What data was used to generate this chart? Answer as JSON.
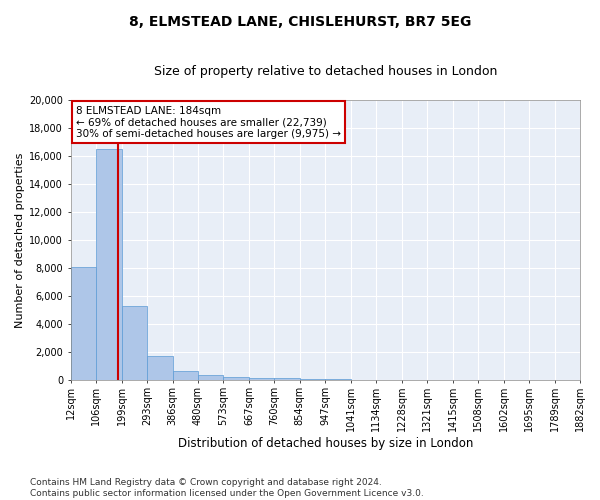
{
  "title": "8, ELMSTEAD LANE, CHISLEHURST, BR7 5EG",
  "subtitle": "Size of property relative to detached houses in London",
  "xlabel": "Distribution of detached houses by size in London",
  "ylabel": "Number of detached properties",
  "bar_values": [
    8100,
    16500,
    5300,
    1750,
    650,
    350,
    270,
    200,
    200,
    120,
    80,
    50,
    30,
    20,
    15,
    10,
    8,
    5,
    4,
    3
  ],
  "bin_labels": [
    "12sqm",
    "106sqm",
    "199sqm",
    "293sqm",
    "386sqm",
    "480sqm",
    "573sqm",
    "667sqm",
    "760sqm",
    "854sqm",
    "947sqm",
    "1041sqm",
    "1134sqm",
    "1228sqm",
    "1321sqm",
    "1415sqm",
    "1508sqm",
    "1602sqm",
    "1695sqm",
    "1789sqm",
    "1882sqm"
  ],
  "bar_color": "#aec6e8",
  "bar_edge_color": "#5b9bd5",
  "vline_color": "#cc0000",
  "property_sqm": 184,
  "bin_starts": [
    12,
    106,
    199,
    293,
    386,
    480,
    573,
    667,
    760,
    854,
    947,
    1041,
    1134,
    1228,
    1321,
    1415,
    1508,
    1602,
    1695,
    1789,
    1882
  ],
  "annotation_line1": "8 ELMSTEAD LANE: 184sqm",
  "annotation_line2": "← 69% of detached houses are smaller (22,739)",
  "annotation_line3": "30% of semi-detached houses are larger (9,975) →",
  "annotation_box_color": "#ffffff",
  "annotation_box_edge": "#cc0000",
  "ylim": [
    0,
    20000
  ],
  "yticks": [
    0,
    2000,
    4000,
    6000,
    8000,
    10000,
    12000,
    14000,
    16000,
    18000,
    20000
  ],
  "background_color": "#e8eef7",
  "footer_text": "Contains HM Land Registry data © Crown copyright and database right 2024.\nContains public sector information licensed under the Open Government Licence v3.0.",
  "title_fontsize": 10,
  "subtitle_fontsize": 9,
  "xlabel_fontsize": 8.5,
  "ylabel_fontsize": 8,
  "tick_fontsize": 7,
  "annotation_fontsize": 7.5,
  "footer_fontsize": 6.5
}
